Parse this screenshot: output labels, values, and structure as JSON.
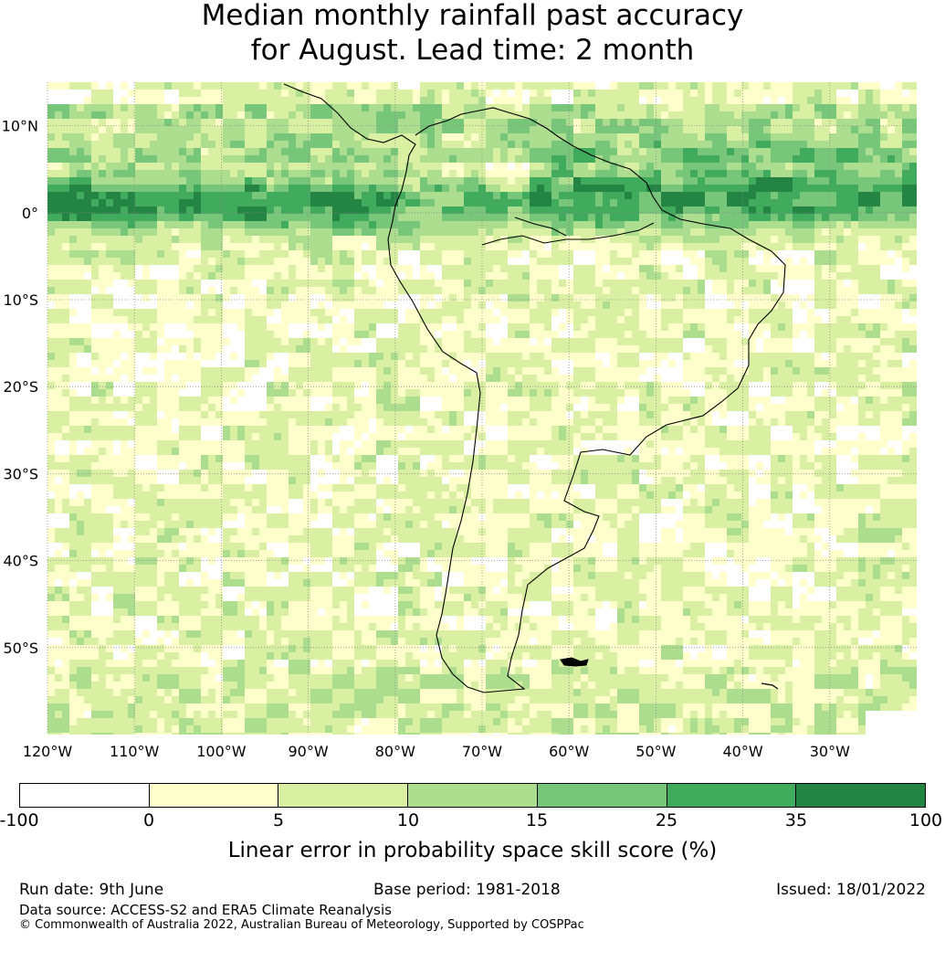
{
  "title_line1": "Median monthly rainfall past accuracy",
  "title_line2": "for August. Lead time: 2 month",
  "map": {
    "lat_labels": [
      "10°N",
      "0°",
      "10°S",
      "20°S",
      "30°S",
      "40°S",
      "50°S"
    ],
    "lon_labels": [
      "120°W",
      "110°W",
      "100°W",
      "90°W",
      "80°W",
      "70°W",
      "60°W",
      "50°W",
      "40°W",
      "30°W"
    ],
    "lat_values": [
      10,
      0,
      -10,
      -20,
      -30,
      -40,
      -50
    ],
    "lon_values": [
      -120,
      -110,
      -100,
      -90,
      -80,
      -70,
      -60,
      -50,
      -40,
      -30
    ],
    "extent": {
      "lon_min": -120,
      "lon_max": -20,
      "lat_min": -60,
      "lat_max": 15
    }
  },
  "colorbar": {
    "ticks": [
      "-100",
      "0",
      "5",
      "10",
      "15",
      "25",
      "35",
      "100"
    ],
    "colors": [
      "#ffffff",
      "#ffffcc",
      "#d9f0a3",
      "#addd8e",
      "#78c679",
      "#41ab5d",
      "#238443"
    ],
    "label": "Linear error in probability space skill score (%)"
  },
  "footer": {
    "run_date": "Run date: 9th June",
    "base_period": "Base period: 1981-2018",
    "issued": "Issued: 18/01/2022",
    "data_source": "Data source: ACCESS-S2 and ERA5 Climate Reanalysis",
    "copyright": "© Commonwealth of Australia 2022, Australian Bureau of Meteorology, Supported by COSPPac"
  }
}
